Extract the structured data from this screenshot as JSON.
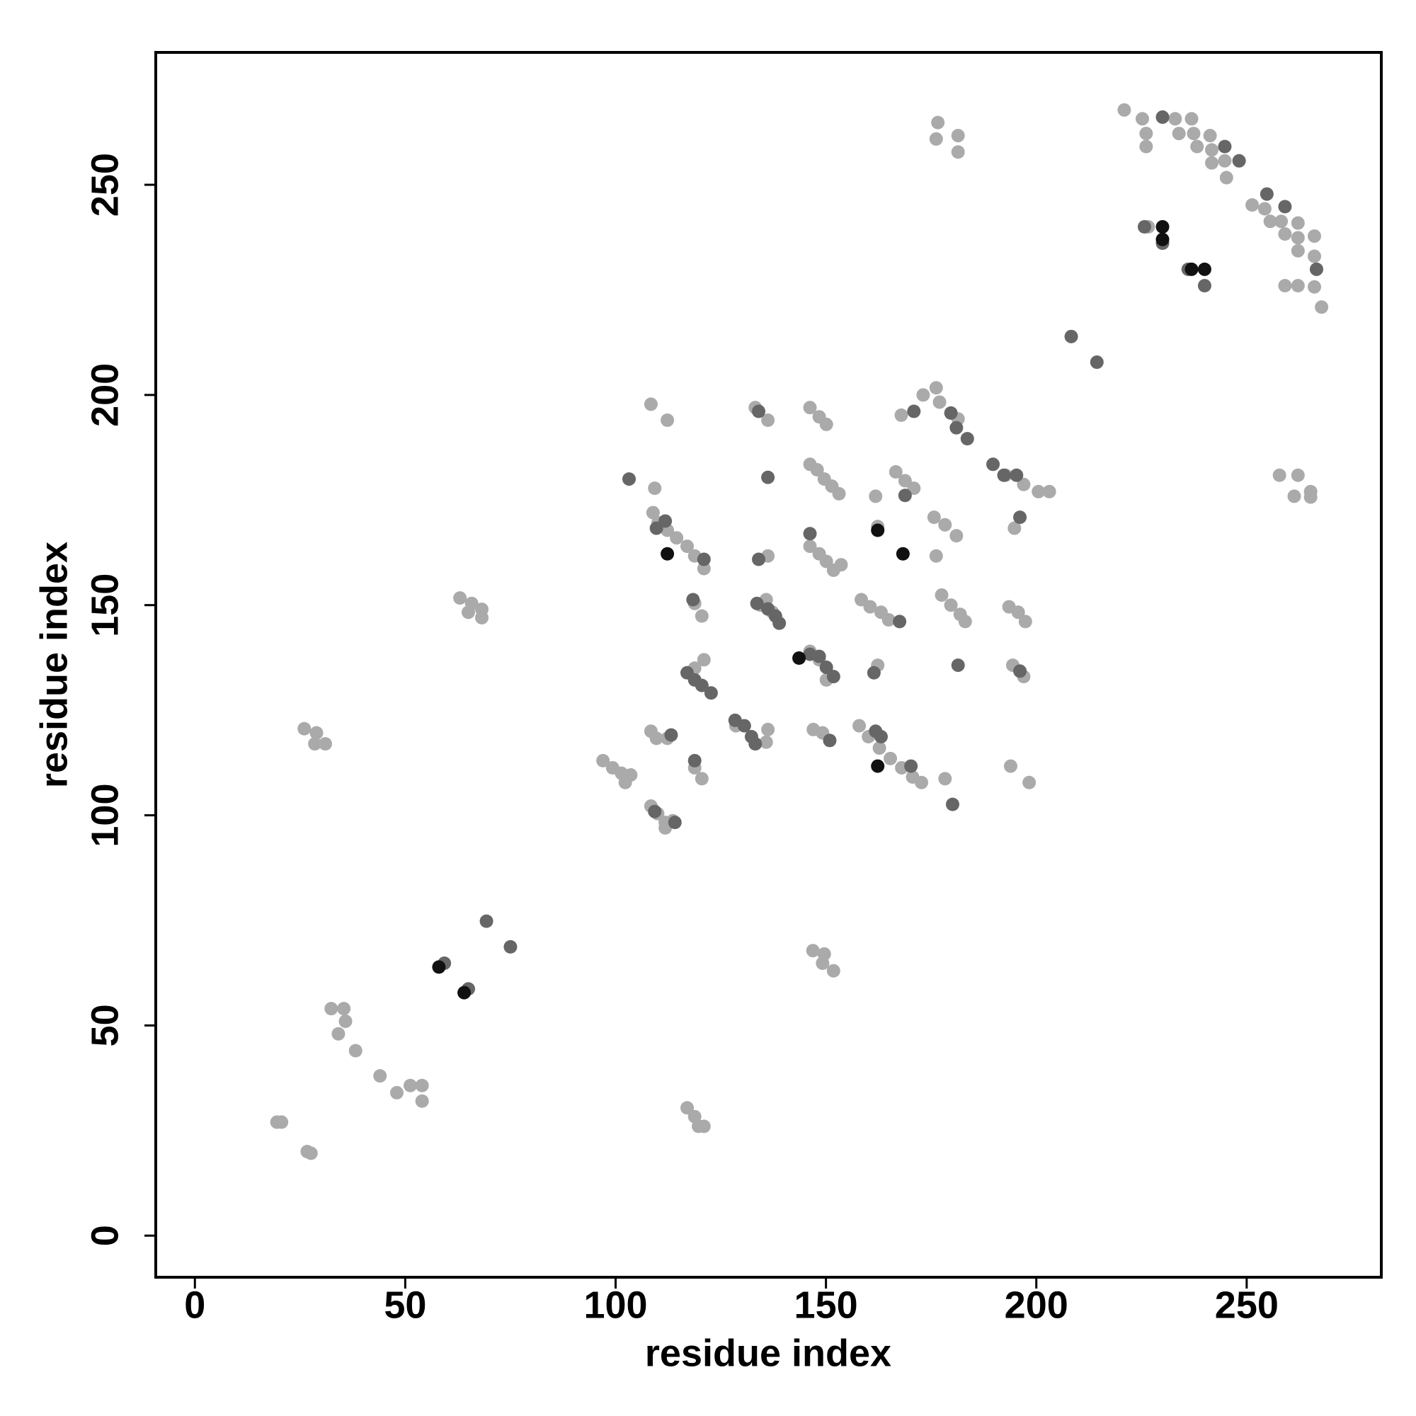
{
  "chart_data": {
    "type": "scatter",
    "xlabel": "residue index",
    "ylabel": "residue index",
    "xlim": [
      -9.3,
      282
    ],
    "ylim": [
      -9.9,
      281.5
    ],
    "xticks": [
      0,
      50,
      100,
      150,
      200,
      250
    ],
    "yticks": [
      0,
      50,
      100,
      150,
      200,
      250
    ],
    "grid": false,
    "series": [
      {
        "color": "#aaaaaa",
        "x": [
          19.5,
          20.6,
          26.7,
          27.6,
          32.4,
          35.4,
          35.8,
          34.1,
          38.2,
          44,
          48,
          51.2,
          54,
          54,
          26,
          28.9,
          28.5,
          31,
          63,
          65.8,
          65,
          68.2,
          68.2,
          97,
          99.3,
          101.4,
          103.6,
          102.3,
          108.4,
          109.7,
          112.3,
          108.4,
          110,
          111.8,
          113.6,
          111.8,
          118.8,
          120.5,
          108.9,
          110.1,
          112.3,
          114.5,
          117,
          118.8,
          121,
          108.4,
          112.3,
          109.3,
          120.5,
          118.8,
          118.8,
          121,
          117,
          118.8,
          119.7,
          121,
          135.8,
          137.3,
          134.4,
          128.6,
          136.2,
          135.8,
          133.2,
          136.2,
          136.2,
          146.2,
          148.4,
          150.1,
          146.2,
          147.9,
          149.6,
          151.4,
          153.1,
          146.2,
          148.4,
          150.1,
          151.8,
          153.6,
          146.2,
          148.4,
          150.1,
          147,
          149.2,
          146.9,
          149.6,
          149.2,
          151.8,
          158.4,
          160.5,
          163.1,
          164.9,
          157.9,
          160.1,
          162.7,
          165.3,
          168,
          170.6,
          172.7,
          178.3,
          161.8,
          162.3,
          162.3,
          166.6,
          168.8,
          170.9,
          167.9,
          175.7,
          178.3,
          181,
          176.2,
          173.1,
          176.2,
          177,
          181.4,
          177.5,
          179.7,
          181.9,
          183.1,
          176.6,
          176.2,
          181.4,
          181.4,
          192.7,
          197,
          200.5,
          203.1,
          194.8,
          193.5,
          195.7,
          197.4,
          194.4,
          197,
          193.9,
          198.3,
          220.9,
          225.2,
          226.1,
          226.1,
          226.6,
          233,
          233.9,
          236.9,
          237.4,
          238.2,
          241.3,
          241.7,
          241.7,
          244.8,
          245.2,
          251.3,
          254.3,
          255.6,
          258.2,
          259.1,
          262.2,
          262.2,
          262.2,
          266.1,
          266.1,
          266.6,
          259.1,
          262.2,
          266.1,
          267.8,
          257.8,
          262.2,
          261.3,
          265.2,
          265.2
        ],
        "values": [
          27,
          27,
          20,
          19.6,
          54,
          54,
          51,
          48,
          44,
          38,
          34,
          35.7,
          35.7,
          32,
          120.6,
          119.6,
          117,
          117,
          151.7,
          150.4,
          148.3,
          149,
          147,
          113,
          111.3,
          110,
          109.6,
          107.8,
          120,
          118.3,
          118.3,
          102.2,
          100.4,
          98.3,
          98.7,
          97,
          111.3,
          108.7,
          172,
          169.6,
          167.8,
          166,
          164,
          161.7,
          158.7,
          197.8,
          194,
          177.8,
          147.4,
          150.4,
          135,
          137,
          30.4,
          28.3,
          26,
          26,
          151.3,
          148.3,
          150,
          121.3,
          120.4,
          117.4,
          197,
          194,
          161.7,
          197,
          194.8,
          193,
          183.5,
          182.2,
          180,
          178.3,
          176.5,
          164,
          162.2,
          160.4,
          158.3,
          159.6,
          139,
          137,
          132.2,
          120.4,
          119.6,
          67.8,
          67,
          64.8,
          63,
          151.3,
          149.6,
          148.3,
          146.5,
          121.3,
          118.7,
          116,
          113.5,
          111.3,
          109.1,
          107.8,
          108.7,
          175.9,
          168.7,
          135.7,
          181.7,
          179.6,
          177.8,
          195.2,
          170.9,
          169.1,
          166.5,
          161.7,
          200,
          201.7,
          198.3,
          194.3,
          152.4,
          150,
          147.8,
          146.1,
          264.8,
          260.9,
          261.7,
          257.8,
          180.9,
          178.7,
          177,
          177,
          168.3,
          149.6,
          148.3,
          146.1,
          135.7,
          133,
          111.7,
          107.8,
          267.8,
          265.7,
          262.2,
          259.1,
          240,
          265.7,
          262.2,
          265.7,
          262.2,
          259.1,
          261.7,
          258.3,
          255.2,
          255.7,
          251.7,
          245.2,
          244.3,
          241.3,
          241.3,
          238.3,
          240.9,
          237.4,
          234.3,
          237.8,
          233,
          229.9,
          226,
          226,
          225.7,
          220.9,
          180.9,
          180.9,
          175.9,
          177,
          175.7
        ]
      },
      {
        "color": "#666666",
        "x": [
          103.2,
          109.7,
          111.8,
          121,
          118.4,
          117,
          118.8,
          120.5,
          122.7,
          118.8,
          113.2,
          109.3,
          114.1,
          128.4,
          130.6,
          132.3,
          133.2,
          133.6,
          136.2,
          138,
          138.9,
          134,
          136.2,
          134,
          146.2,
          146.2,
          148.4,
          150.1,
          151.8,
          150.9,
          161.4,
          161.8,
          163.1,
          167.5,
          168.8,
          170.2,
          170.9,
          179.7,
          181,
          183.6,
          181.4,
          180.1,
          189.7,
          192.3,
          195.3,
          196.1,
          196.1,
          208.3,
          214.4,
          225.7,
          230,
          230,
          236.1,
          240,
          244.8,
          248.2,
          254.8,
          259.1,
          266.6,
          69.3,
          75,
          59.3,
          65
        ],
        "values": [
          180,
          168.3,
          170,
          160.9,
          151.3,
          133.9,
          132.2,
          130.9,
          129.1,
          113,
          119.1,
          100.9,
          98.3,
          122.6,
          121.3,
          118.7,
          117,
          150.4,
          149.1,
          147.4,
          145.7,
          196.1,
          180.4,
          160.9,
          167,
          138.3,
          137.8,
          135.2,
          133,
          117.8,
          133.9,
          120,
          118.7,
          146.1,
          176.1,
          111.7,
          196.1,
          195.7,
          192.2,
          189.6,
          135.7,
          102.6,
          183.5,
          180.9,
          180.9,
          170.9,
          134.3,
          213.9,
          207.8,
          240,
          266.1,
          236.1,
          229.9,
          226,
          259.1,
          255.7,
          247.8,
          244.8,
          229.9,
          74.8,
          68.7,
          64.8,
          58.7
        ]
      },
      {
        "color": "#111111",
        "x": [
          58,
          64,
          112.3,
          162.3,
          162.3,
          168.3,
          143.6,
          230,
          230,
          236.9,
          240
        ],
        "values": [
          63.9,
          57.8,
          162.2,
          111.7,
          167.8,
          162.2,
          137.4,
          240,
          237,
          229.9,
          229.9
        ]
      }
    ]
  }
}
